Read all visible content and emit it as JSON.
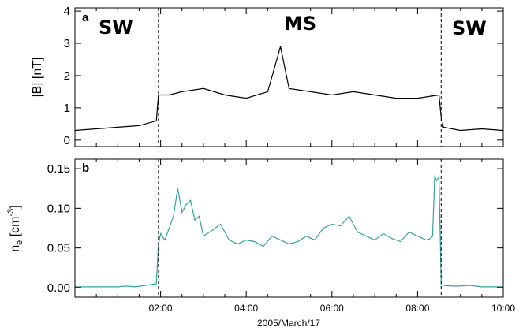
{
  "chart_data": [
    {
      "type": "line",
      "panel_label": "a",
      "ylabel": "|B| [nT]",
      "ylim": [
        -0.2,
        4.1
      ],
      "yticks": [
        0,
        1,
        2,
        3,
        4
      ],
      "ytick_labels": [
        "0",
        "1",
        "2",
        "3",
        "4"
      ],
      "xlim": [
        0,
        10
      ],
      "line_color": "#000000",
      "annotations": [
        "SW",
        "MS",
        "SW"
      ],
      "boundaries_hours": [
        1.95,
        8.55
      ],
      "series": [
        {
          "x": [
            0.0,
            0.5,
            1.0,
            1.5,
            1.9,
            1.95,
            2.2,
            2.5,
            3.0,
            3.5,
            4.0,
            4.5,
            4.8,
            5.0,
            5.5,
            6.0,
            6.5,
            7.0,
            7.5,
            8.0,
            8.5,
            8.55,
            8.6,
            9.0,
            9.5,
            10.0
          ],
          "y": [
            0.3,
            0.35,
            0.4,
            0.45,
            0.6,
            1.4,
            1.4,
            1.5,
            1.6,
            1.4,
            1.3,
            1.5,
            2.9,
            1.6,
            1.5,
            1.4,
            1.5,
            1.4,
            1.3,
            1.3,
            1.4,
            0.7,
            0.4,
            0.3,
            0.35,
            0.3
          ]
        }
      ]
    },
    {
      "type": "line",
      "panel_label": "b",
      "ylabel": "n_e [cm^-3]",
      "ylim": [
        -0.012,
        0.162
      ],
      "yticks": [
        0.0,
        0.05,
        0.1,
        0.15
      ],
      "ytick_labels": [
        "0.00",
        "0.05",
        "0.10",
        "0.15"
      ],
      "xlim": [
        0,
        10
      ],
      "xticks": [
        2,
        4,
        6,
        8,
        10
      ],
      "xtick_labels": [
        "02:00",
        "04:00",
        "06:00",
        "08:00",
        "10:00"
      ],
      "xlabel": "2005/March/17",
      "line_color": "#3a9e9a",
      "boundaries_hours": [
        1.95,
        8.55
      ],
      "series": [
        {
          "x": [
            0.0,
            0.5,
            1.0,
            1.2,
            1.4,
            1.8,
            1.9,
            1.95,
            2.0,
            2.1,
            2.2,
            2.3,
            2.4,
            2.5,
            2.6,
            2.7,
            2.8,
            2.9,
            3.0,
            3.2,
            3.4,
            3.6,
            3.8,
            4.0,
            4.2,
            4.4,
            4.6,
            4.8,
            5.0,
            5.2,
            5.4,
            5.6,
            5.8,
            6.0,
            6.2,
            6.4,
            6.6,
            6.8,
            7.0,
            7.2,
            7.4,
            7.6,
            7.8,
            8.0,
            8.2,
            8.3,
            8.35,
            8.4,
            8.45,
            8.5,
            8.55,
            8.6,
            8.8,
            9.0,
            9.2,
            9.5,
            10.0
          ],
          "y": [
            0.001,
            0.001,
            0.001,
            0.002,
            0.001,
            0.004,
            0.005,
            0.055,
            0.068,
            0.06,
            0.075,
            0.09,
            0.125,
            0.095,
            0.105,
            0.11,
            0.085,
            0.09,
            0.065,
            0.072,
            0.08,
            0.06,
            0.055,
            0.06,
            0.058,
            0.052,
            0.065,
            0.06,
            0.055,
            0.058,
            0.065,
            0.06,
            0.075,
            0.08,
            0.078,
            0.09,
            0.07,
            0.065,
            0.06,
            0.068,
            0.062,
            0.058,
            0.07,
            0.065,
            0.06,
            0.062,
            0.065,
            0.14,
            0.135,
            0.14,
            0.005,
            0.003,
            0.002,
            0.002,
            0.003,
            0.001,
            0.001
          ]
        }
      ]
    }
  ]
}
